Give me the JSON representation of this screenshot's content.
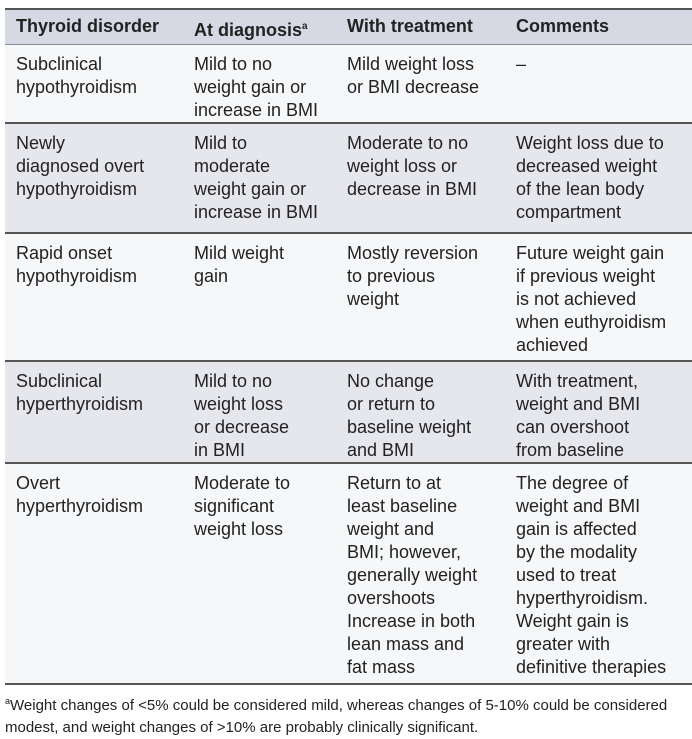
{
  "headers": [
    "Thyroid disorder",
    "At diagnosis",
    "With treatment",
    "Comments"
  ],
  "header_superscript": "a",
  "rows": [
    [
      "Subclinical\nhypothyroidism",
      "Mild to no\nweight gain or\nincrease in BMI",
      "Mild weight loss\nor BMI decrease",
      "–"
    ],
    [
      "Newly\ndiagnosed overt\nhypothyroidism",
      "Mild to\nmoderate\nweight gain or\nincrease in BMI",
      "Moderate to no\nweight loss or\ndecrease in BMI",
      "Weight loss due to\ndecreased weight\nof the lean body\ncompartment"
    ],
    [
      "Rapid onset\nhypothyroidism",
      "Mild weight\ngain",
      "Mostly reversion\nto previous\nweight",
      "Future weight gain\nif previous weight\nis not achieved\nwhen euthyroidism\nachieved"
    ],
    [
      "Subclinical\nhyperthyroidism",
      "Mild to no\nweight loss\nor decrease\nin BMI",
      "No change\nor return to\nbaseline weight\nand BMI",
      "With treatment,\nweight and BMI\ncan overshoot\nfrom baseline"
    ],
    [
      "Overt\nhyperthyroidism",
      "Moderate to\nsignificant\nweight loss",
      "Return to at\nleast baseline\nweight and\nBMI; however,\ngenerally weight\novershoots\nIncrease in both\nlean mass and\nfat mass",
      "The degree of\nweight and BMI\ngain is affected\nby the modality\nused to treat\nhyperthyroidism.\nWeight gain is\ngreater with\ndefinitive therapies"
    ]
  ],
  "footnote_mark": "a",
  "footnote": "Weight changes of <5% could be considered mild, whereas changes of 5-10% could be considered modest, and weight changes of >10% are probably clinically significant."
}
